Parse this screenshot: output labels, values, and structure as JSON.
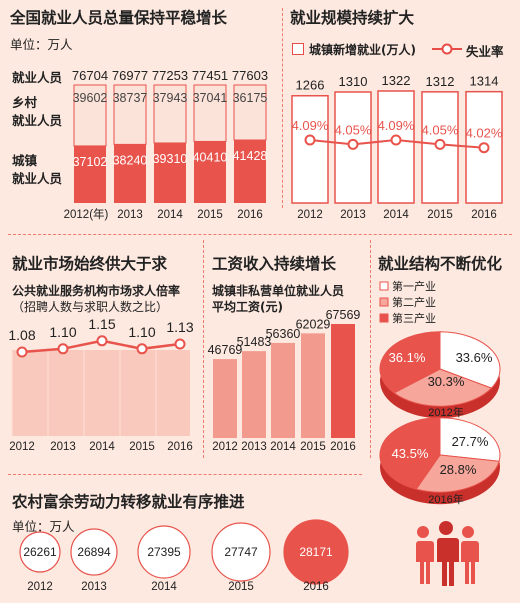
{
  "panels": {
    "employment": {
      "title": "全国就业人员总量保持平稳增长",
      "unit": "单位：万人",
      "row_labels": {
        "total": "就业人员",
        "rural": "乡村\n就业人员",
        "urban": "城镇\n就业人员"
      }
    },
    "scale": {
      "title": "就业规模持续扩大",
      "legend_bar": "城镇新增就业(万人)",
      "legend_line": "失业率"
    },
    "market": {
      "title": "就业市场始终供大于求",
      "subtitle1": "公共就业服务机构市场求人倍率",
      "subtitle2": "（招聘人数与求职人数之比）"
    },
    "wage": {
      "title": "工资收入持续增长",
      "subtitle1": "城镇非私营单位就业人员",
      "subtitle2": "平均工资(元)"
    },
    "structure": {
      "title": "就业结构不断优化",
      "legend": [
        "第一产业",
        "第二产业",
        "第三产业"
      ]
    },
    "rural_transfer": {
      "title": "农村富余劳动力转移就业有序推进",
      "unit": "单位：万人"
    }
  },
  "chart_data": [
    {
      "id": "employment",
      "type": "bar",
      "categories": [
        "2012(年)",
        "2013",
        "2014",
        "2015",
        "2016"
      ],
      "totals": [
        76704,
        76977,
        77253,
        77451,
        77603
      ],
      "series": [
        {
          "name": "乡村就业人员",
          "values": [
            39602,
            38737,
            37943,
            37041,
            36175
          ]
        },
        {
          "name": "城镇就业人员",
          "values": [
            37102,
            38240,
            39310,
            40410,
            41428
          ]
        }
      ],
      "colors": [
        "#fce3d9",
        "#e8534c"
      ]
    },
    {
      "id": "scale",
      "type": "bar",
      "categories": [
        "2012",
        "2013",
        "2014",
        "2015",
        "2016"
      ],
      "series": [
        {
          "name": "城镇新增就业(万人)",
          "values": [
            1266,
            1310,
            1322,
            1312,
            1314
          ]
        },
        {
          "name": "失业率",
          "values": [
            4.09,
            4.05,
            4.09,
            4.05,
            4.02
          ],
          "labels": [
            "4.09%",
            "4.05%",
            "4.09%",
            "4.05%",
            "4.02%"
          ]
        }
      ]
    },
    {
      "id": "market",
      "type": "line",
      "categories": [
        "2012",
        "2013",
        "2014",
        "2015",
        "2016"
      ],
      "values": [
        1.08,
        1.1,
        1.15,
        1.1,
        1.13
      ],
      "labels": [
        "1.08",
        "1.10",
        "1.15",
        "1.10",
        "1.13"
      ]
    },
    {
      "id": "wage",
      "type": "bar",
      "categories": [
        "2012",
        "2013",
        "2014",
        "2015",
        "2016"
      ],
      "values": [
        46769,
        51483,
        56360,
        62029,
        67569
      ]
    },
    {
      "id": "structure-2012",
      "type": "pie",
      "title": "2012年",
      "labels": [
        "第一产业",
        "第二产业",
        "第三产业"
      ],
      "values": [
        33.6,
        30.3,
        36.1
      ],
      "display": [
        "33.6%",
        "30.3%",
        "36.1%"
      ]
    },
    {
      "id": "structure-2016",
      "type": "pie",
      "title": "2016年",
      "labels": [
        "第一产业",
        "第二产业",
        "第三产业"
      ],
      "values": [
        27.7,
        28.8,
        43.5
      ],
      "display": [
        "27.7%",
        "28.8%",
        "43.5%"
      ]
    },
    {
      "id": "rural",
      "type": "scatter",
      "categories": [
        "2012",
        "2013",
        "2014",
        "2015",
        "2016"
      ],
      "values": [
        26261,
        26894,
        27395,
        27747,
        28171
      ]
    }
  ]
}
